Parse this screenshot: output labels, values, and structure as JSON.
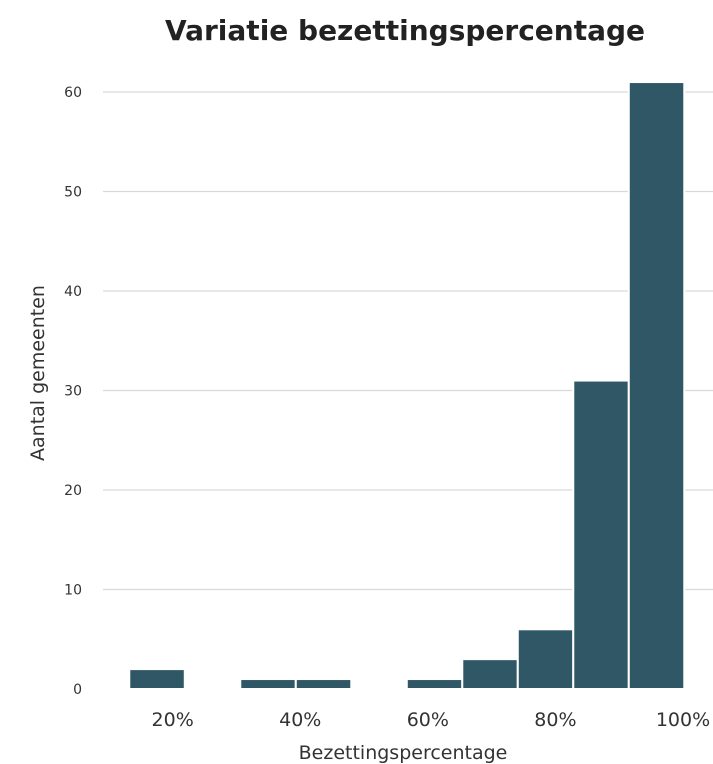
{
  "chart_data": {
    "type": "bar",
    "title": "Variatie bezettingspercentage",
    "xlabel": "Bezettingspercentage",
    "ylabel": "Aantal gemeenten",
    "ylim": [
      0,
      60
    ],
    "yticks": [
      "0",
      "10",
      "20",
      "30",
      "40",
      "50",
      "60"
    ],
    "xlim": [
      0.13,
      1.0
    ],
    "xticks": [
      {
        "value": 0.2,
        "label": "20%"
      },
      {
        "value": 0.4,
        "label": "40%"
      },
      {
        "value": 0.6,
        "label": "60%"
      },
      {
        "value": 0.8,
        "label": "80%"
      },
      {
        "value": 1.0,
        "label": "100%"
      }
    ],
    "bins": [
      {
        "from": 0.132,
        "to": 0.219,
        "count": 2
      },
      {
        "from": 0.219,
        "to": 0.306,
        "count": 0
      },
      {
        "from": 0.306,
        "to": 0.393,
        "count": 1
      },
      {
        "from": 0.393,
        "to": 0.48,
        "count": 1
      },
      {
        "from": 0.48,
        "to": 0.567,
        "count": 0
      },
      {
        "from": 0.567,
        "to": 0.654,
        "count": 1
      },
      {
        "from": 0.654,
        "to": 0.741,
        "count": 3
      },
      {
        "from": 0.741,
        "to": 0.828,
        "count": 6
      },
      {
        "from": 0.828,
        "to": 0.915,
        "count": 31
      },
      {
        "from": 0.915,
        "to": 1.002,
        "count": 61
      }
    ],
    "bar_color": "#2f5766",
    "grid": true
  }
}
